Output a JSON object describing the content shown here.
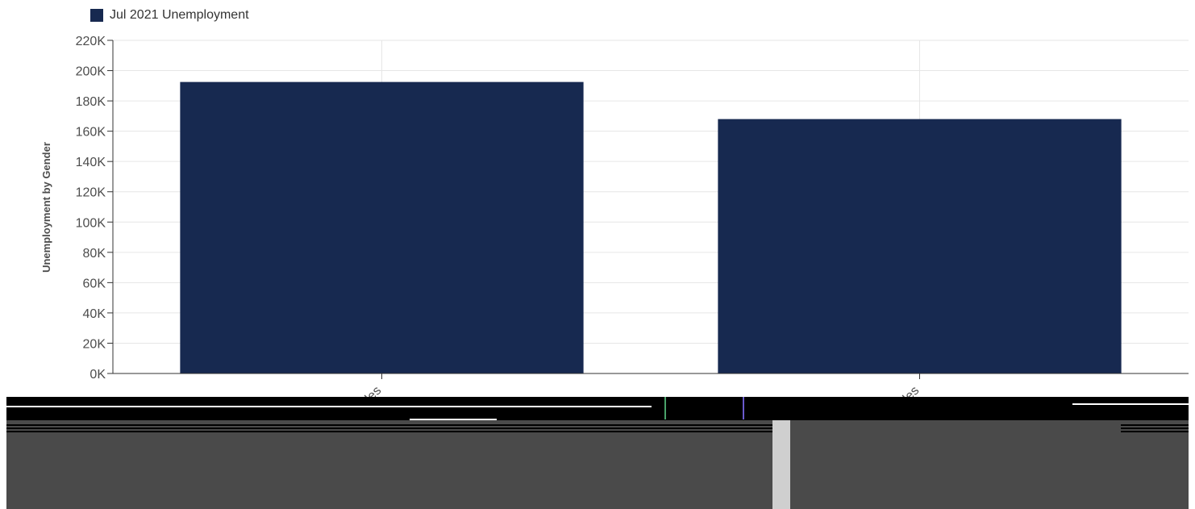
{
  "chart_data": {
    "type": "bar",
    "title": "",
    "xlabel": "",
    "ylabel": "Unemployment by Gender",
    "categories": [
      "Males",
      "Females"
    ],
    "series": [
      {
        "name": "Jul 2021 Unemployment",
        "values": [
          192500,
          168000
        ]
      }
    ],
    "ylim": [
      0,
      220000
    ],
    "yticks": [
      {
        "value": 0,
        "label": "0K"
      },
      {
        "value": 20000,
        "label": "20K"
      },
      {
        "value": 40000,
        "label": "40K"
      },
      {
        "value": 60000,
        "label": "60K"
      },
      {
        "value": 80000,
        "label": "80K"
      },
      {
        "value": 100000,
        "label": "100K"
      },
      {
        "value": 120000,
        "label": "120K"
      },
      {
        "value": 140000,
        "label": "140K"
      },
      {
        "value": 160000,
        "label": "160K"
      },
      {
        "value": 180000,
        "label": "180K"
      },
      {
        "value": 200000,
        "label": "200K"
      },
      {
        "value": 220000,
        "label": "220K"
      }
    ],
    "grid": true,
    "legend_position": "top-left",
    "colors": {
      "bar": "#172950",
      "grid": "#e6e6e6",
      "axis": "#333333",
      "text": "#4d4d4d"
    }
  }
}
